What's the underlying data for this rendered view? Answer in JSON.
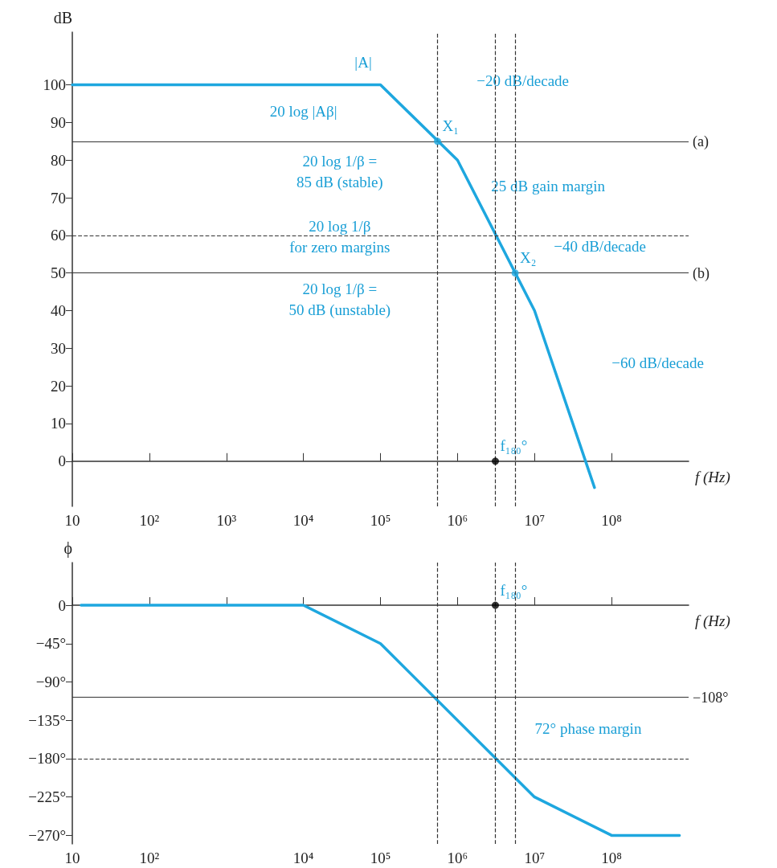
{
  "chart_data": [
    {
      "type": "line",
      "xlabel": "f (Hz)",
      "ylabel": "dB",
      "log": "x",
      "marker": "none",
      "grid": false,
      "xlim": [
        10,
        1000000000
      ],
      "xticks": [
        10,
        {
          "value": 100,
          "label": "10²"
        },
        {
          "value": 1000,
          "label": "10³"
        },
        {
          "value": 10000,
          "label": "10⁴"
        },
        {
          "value": 100000,
          "label": "10⁵"
        },
        {
          "value": 1000000,
          "label": "10⁶"
        },
        {
          "value": 10000000,
          "label": "10⁷"
        },
        {
          "value": 100000000,
          "label": "10⁸"
        }
      ],
      "ylim": [
        -12,
        114
      ],
      "yticks": [
        0,
        10,
        20,
        30,
        40,
        50,
        60,
        70,
        80,
        90,
        100
      ],
      "series": [
        {
          "type": "line",
          "color": "#1ea7df",
          "x": [
            10,
            100000,
            1000000,
            10000000,
            60000000
          ],
          "values": [
            100,
            100,
            80,
            40,
            -7
          ]
        },
        {
          "type": "scatter",
          "marker": "circle",
          "color": "#1ea7df",
          "x": [
            550000,
            5600000
          ],
          "values": [
            85,
            50
          ]
        },
        {
          "type": "scatter",
          "marker": "circle",
          "color": "#000000",
          "x": [
            3100000
          ],
          "values": [
            0
          ]
        }
      ],
      "ref_lines": [
        {
          "axis": "y",
          "value": 85,
          "label": "(a)",
          "line_style": "solid"
        },
        {
          "axis": "y",
          "value": 60,
          "line_style": "dashed"
        },
        {
          "axis": "y",
          "value": 50,
          "label": "(b)",
          "line_style": "solid"
        },
        {
          "axis": "x",
          "value": 550000,
          "line_style": "dashed"
        },
        {
          "axis": "x",
          "value": 3100000,
          "line_style": "dashed"
        },
        {
          "axis": "x",
          "value": 5600000,
          "line_style": "dashed"
        }
      ],
      "annotations": [
        "|A|",
        "20 log |Aβ|",
        "−20 dB/decade",
        {
          "text": "X₁",
          "x": 550000,
          "y": 85
        },
        "20 log 1/β =\n85 dB (stable)",
        "25 dB gain margin",
        "20 log 1/β\nfor zero margins",
        "−40 dB/decade",
        {
          "text": "X₂",
          "x": 5600000,
          "y": 50
        },
        "20 log 1/β =\n50 dB (unstable)",
        "−60 dB/decade",
        {
          "text": "f₁₈₀°",
          "x": 3100000,
          "y": 0
        }
      ]
    },
    {
      "type": "line",
      "xlabel": "f (Hz)",
      "ylabel": "ϕ",
      "log": "x",
      "marker": "none",
      "grid": false,
      "xlim": [
        10,
        1000000000
      ],
      "xticks": [
        10,
        {
          "value": 100,
          "label": "10²"
        },
        {
          "value": 1000,
          "label": null
        },
        {
          "value": 10000,
          "label": "10⁴"
        },
        {
          "value": 100000,
          "label": "10⁵"
        },
        {
          "value": 1000000,
          "label": "10⁶"
        },
        {
          "value": 10000000,
          "label": "10⁷"
        },
        {
          "value": 100000000,
          "label": "10⁸"
        }
      ],
      "ylim": [
        -280,
        50
      ],
      "yticks": [
        0,
        {
          "value": -45,
          "label": "−45°"
        },
        {
          "value": -90,
          "label": "−90°"
        },
        {
          "value": -135,
          "label": "−135°"
        },
        {
          "value": -180,
          "label": "−180°"
        },
        {
          "value": -225,
          "label": "−225°"
        },
        {
          "value": -270,
          "label": "−270°"
        }
      ],
      "series": [
        {
          "type": "line",
          "color": "#1ea7df",
          "x": [
            13,
            10000,
            100000,
            10000000,
            100000000,
            760000000
          ],
          "values": [
            0,
            0,
            -45,
            -225,
            -270,
            -270
          ]
        },
        {
          "type": "scatter",
          "marker": "circle",
          "color": "#000000",
          "x": [
            3100000
          ],
          "values": [
            0
          ]
        }
      ],
      "ref_lines": [
        {
          "axis": "y",
          "value": -108,
          "label": "−108°",
          "line_style": "solid"
        },
        {
          "axis": "y",
          "value": -180,
          "line_style": "dashed"
        },
        {
          "axis": "x",
          "value": 550000,
          "line_style": "dashed"
        },
        {
          "axis": "x",
          "value": 3100000,
          "line_style": "dashed"
        },
        {
          "axis": "x",
          "value": 5600000,
          "line_style": "dashed"
        }
      ],
      "annotations": [
        {
          "text": "f₁₈₀°",
          "x": 3100000,
          "y": 0
        },
        "72° phase margin"
      ]
    }
  ]
}
